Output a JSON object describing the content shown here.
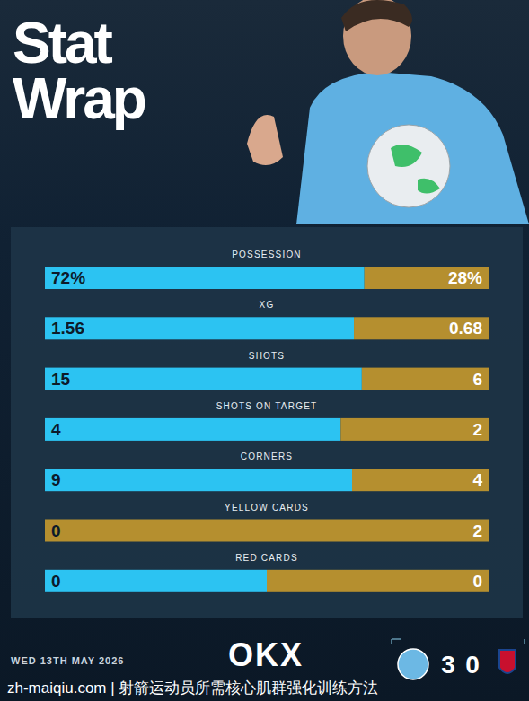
{
  "chart_data": {
    "type": "bar",
    "title": "Stat Wrap",
    "orientation": "horizontal",
    "stacked": true,
    "data_labels": true,
    "tick_labels": false,
    "categories": [
      "POSSESSION",
      "XG",
      "SHOTS",
      "SHOTS ON TARGET",
      "CORNERS",
      "YELLOW CARDS",
      "RED CARDS"
    ],
    "series": [
      {
        "color": "#2cc3f2",
        "values": [
          72,
          1.56,
          15,
          4,
          9,
          0,
          0
        ],
        "value_labels": [
          "72%",
          "1.56",
          "15",
          "4",
          "9",
          "0",
          "0"
        ]
      },
      {
        "color": "#b58f2f",
        "values": [
          28,
          0.68,
          6,
          2,
          4,
          2,
          0
        ],
        "value_labels": [
          "28%",
          "0.68",
          "6",
          "2",
          "4",
          "2",
          "0"
        ]
      }
    ]
  },
  "footer": {
    "sponsor": "OKX",
    "date": "WED 13TH MAY 2026",
    "score": [
      3,
      0
    ],
    "watermark": "zh-maiqiu.com | 射箭运动员所需核心肌群强化训练方法"
  }
}
